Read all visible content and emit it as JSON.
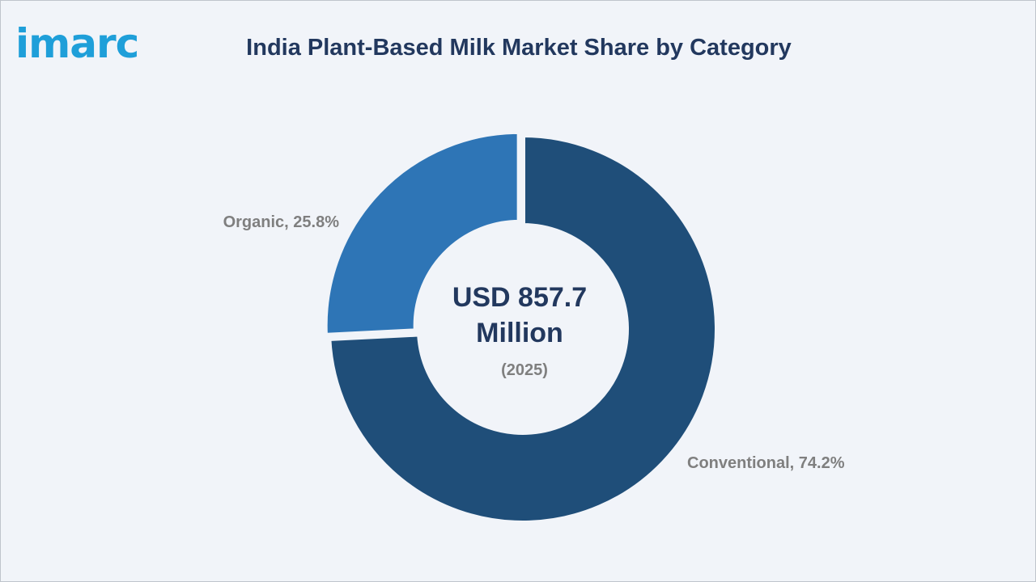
{
  "brand": {
    "logo_text": "imarc"
  },
  "chart_data": {
    "type": "pie",
    "variant": "donut",
    "title": "India Plant-Based Milk Market Share by Category",
    "center": {
      "value_line1": "USD 857.7",
      "value_line2": "Million",
      "year": "(2025)"
    },
    "slices": [
      {
        "label": "Conventional, 74.2%",
        "category": "Conventional",
        "value": 74.2,
        "color": "#1f4e79"
      },
      {
        "label": "Organic, 25.8%",
        "category": "Organic",
        "value": 25.8,
        "color": "#2e75b6"
      }
    ],
    "legend": "none"
  }
}
